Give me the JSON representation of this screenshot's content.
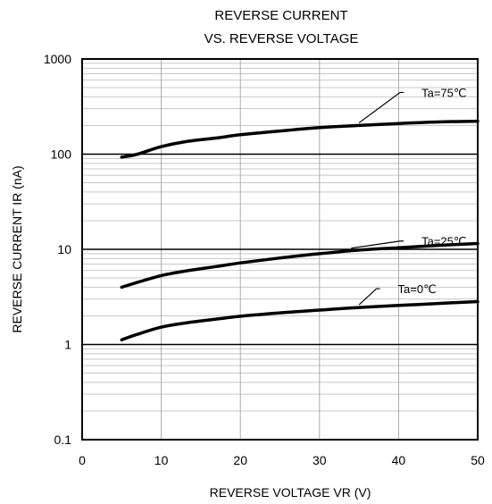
{
  "chart_data": {
    "type": "line",
    "title": [
      "REVERSE CURRENT",
      "VS. REVERSE VOLTAGE"
    ],
    "xlabel": "REVERSE VOLTAGE  VR (V)",
    "ylabel": "REVERSE CURRENT  IR (nA)",
    "xlim": [
      0,
      50
    ],
    "ylim": [
      0.1,
      1000
    ],
    "yscale": "log",
    "grid": true,
    "x_ticks": [
      0,
      10,
      20,
      30,
      40,
      50
    ],
    "x_tick_labels": [
      "0",
      "10",
      "20",
      "30",
      "40",
      "50"
    ],
    "y_ticks": [
      0.1,
      1,
      10,
      100,
      1000
    ],
    "y_tick_labels": [
      "0.1",
      "1",
      "10",
      "100",
      "1000"
    ],
    "series": [
      {
        "name": "Ta=75℃",
        "x": [
          5,
          7,
          10,
          13,
          17,
          20,
          25,
          30,
          35,
          40,
          45,
          50
        ],
        "y": [
          93,
          100,
          120,
          135,
          148,
          160,
          175,
          190,
          200,
          210,
          218,
          222
        ]
      },
      {
        "name": "Ta=25℃",
        "x": [
          5,
          7,
          10,
          13,
          17,
          20,
          25,
          30,
          35,
          40,
          45,
          50
        ],
        "y": [
          4.0,
          4.5,
          5.3,
          5.9,
          6.6,
          7.2,
          8.1,
          9.0,
          9.8,
          10.4,
          11.0,
          11.5
        ]
      },
      {
        "name": "Ta=0℃",
        "x": [
          5,
          7,
          10,
          13,
          17,
          20,
          25,
          30,
          35,
          40,
          45,
          50
        ],
        "y": [
          1.12,
          1.28,
          1.52,
          1.68,
          1.85,
          1.98,
          2.15,
          2.3,
          2.45,
          2.57,
          2.7,
          2.82
        ]
      }
    ]
  }
}
